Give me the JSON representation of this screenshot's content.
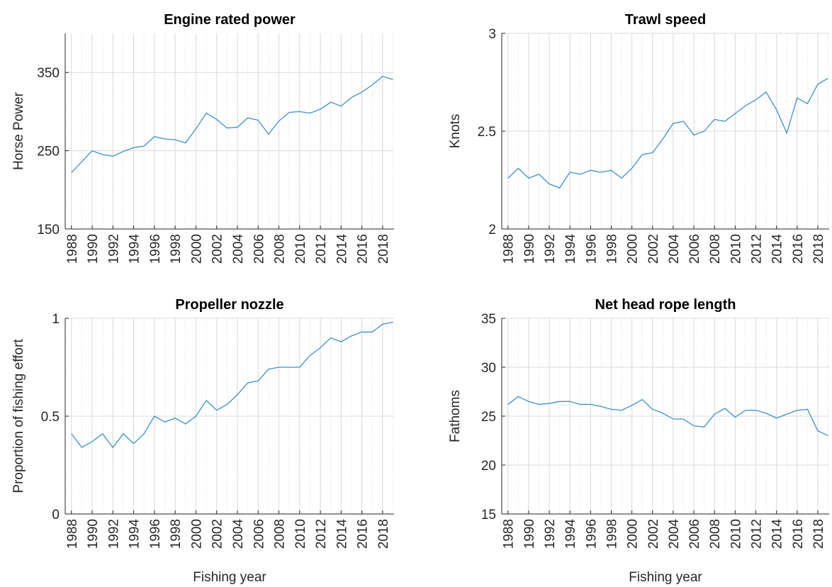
{
  "chart_data": [
    {
      "type": "line",
      "title": "Engine rated power",
      "y_label": "Horse Power",
      "x": [
        1988,
        1989,
        1990,
        1991,
        1992,
        1993,
        1994,
        1995,
        1996,
        1997,
        1998,
        1999,
        2000,
        2001,
        2002,
        2003,
        2004,
        2005,
        2006,
        2007,
        2008,
        2009,
        2010,
        2011,
        2012,
        2013,
        2014,
        2015,
        2016,
        2017,
        2018,
        2019
      ],
      "series": [
        {
          "color": "#3d8fcf",
          "values": [
            222,
            236,
            250,
            245,
            243,
            249,
            254,
            256,
            268,
            265,
            264,
            260,
            278,
            298,
            290,
            279,
            280,
            292,
            289,
            271,
            288,
            299,
            300,
            298,
            303,
            312,
            307,
            318,
            325,
            334,
            345,
            341
          ]
        }
      ],
      "xlim": [
        1987.4,
        2019.1
      ],
      "xticks": [
        1988,
        1990,
        1992,
        1994,
        1996,
        1998,
        2000,
        2002,
        2004,
        2006,
        2008,
        2010,
        2012,
        2014,
        2016,
        2018
      ],
      "ylim": [
        150,
        400
      ],
      "yticks": [
        150,
        250,
        350
      ],
      "grid": true
    },
    {
      "type": "line",
      "title": "Trawl speed",
      "y_label": "Knots",
      "x": [
        1988,
        1989,
        1990,
        1991,
        1992,
        1993,
        1994,
        1995,
        1996,
        1997,
        1998,
        1999,
        2000,
        2001,
        2002,
        2003,
        2004,
        2005,
        2006,
        2007,
        2008,
        2009,
        2010,
        2011,
        2012,
        2013,
        2014,
        2015,
        2016,
        2017,
        2018,
        2019
      ],
      "series": [
        {
          "color": "#3d8fcf",
          "values": [
            2.26,
            2.31,
            2.26,
            2.28,
            2.23,
            2.21,
            2.29,
            2.28,
            2.3,
            2.29,
            2.3,
            2.26,
            2.31,
            2.38,
            2.39,
            2.46,
            2.54,
            2.55,
            2.48,
            2.5,
            2.56,
            2.55,
            2.59,
            2.63,
            2.66,
            2.7,
            2.61,
            2.49,
            2.67,
            2.64,
            2.74,
            2.77
          ]
        }
      ],
      "xlim": [
        1987.4,
        2019.1
      ],
      "xticks": [
        1988,
        1990,
        1992,
        1994,
        1996,
        1998,
        2000,
        2002,
        2004,
        2006,
        2008,
        2010,
        2012,
        2014,
        2016,
        2018
      ],
      "ylim": [
        2,
        3
      ],
      "yticks": [
        2,
        2.5,
        3
      ],
      "grid": true
    },
    {
      "type": "line",
      "title": "Propeller nozzle",
      "y_label": "Proportion of fishing effort",
      "x_label": "Fishing year",
      "x": [
        1988,
        1989,
        1990,
        1991,
        1992,
        1993,
        1994,
        1995,
        1996,
        1997,
        1998,
        1999,
        2000,
        2001,
        2002,
        2003,
        2004,
        2005,
        2006,
        2007,
        2008,
        2009,
        2010,
        2011,
        2012,
        2013,
        2014,
        2015,
        2016,
        2017,
        2018,
        2019
      ],
      "series": [
        {
          "color": "#3d8fcf",
          "values": [
            0.41,
            0.34,
            0.37,
            0.41,
            0.34,
            0.41,
            0.36,
            0.41,
            0.5,
            0.47,
            0.49,
            0.46,
            0.5,
            0.58,
            0.53,
            0.56,
            0.61,
            0.67,
            0.68,
            0.74,
            0.75,
            0.75,
            0.75,
            0.81,
            0.85,
            0.9,
            0.88,
            0.91,
            0.93,
            0.93,
            0.97,
            0.98
          ]
        }
      ],
      "xlim": [
        1987.4,
        2019.1
      ],
      "xticks": [
        1988,
        1990,
        1992,
        1994,
        1996,
        1998,
        2000,
        2002,
        2004,
        2006,
        2008,
        2010,
        2012,
        2014,
        2016,
        2018
      ],
      "ylim": [
        0,
        1
      ],
      "yticks": [
        0,
        0.5,
        1
      ],
      "grid": true
    },
    {
      "type": "line",
      "title": "Net head rope length",
      "y_label": "Fathoms",
      "x_label": "Fishing year",
      "x": [
        1988,
        1989,
        1990,
        1991,
        1992,
        1993,
        1994,
        1995,
        1996,
        1997,
        1998,
        1999,
        2000,
        2001,
        2002,
        2003,
        2004,
        2005,
        2006,
        2007,
        2008,
        2009,
        2010,
        2011,
        2012,
        2013,
        2014,
        2015,
        2016,
        2017,
        2018,
        2019
      ],
      "series": [
        {
          "color": "#3d8fcf",
          "values": [
            26.2,
            27.0,
            26.5,
            26.2,
            26.3,
            26.5,
            26.5,
            26.2,
            26.2,
            26.0,
            25.7,
            25.6,
            26.1,
            26.7,
            25.7,
            25.3,
            24.7,
            24.7,
            24.0,
            23.9,
            25.2,
            25.8,
            24.9,
            25.6,
            25.6,
            25.3,
            24.8,
            25.2,
            25.6,
            25.7,
            23.5,
            23.0
          ]
        }
      ],
      "xlim": [
        1987.4,
        2019.1
      ],
      "xticks": [
        1988,
        1990,
        1992,
        1994,
        1996,
        1998,
        2000,
        2002,
        2004,
        2006,
        2008,
        2010,
        2012,
        2014,
        2016,
        2018
      ],
      "ylim": [
        15,
        35
      ],
      "yticks": [
        15,
        20,
        25,
        30,
        35
      ],
      "grid": true
    }
  ]
}
